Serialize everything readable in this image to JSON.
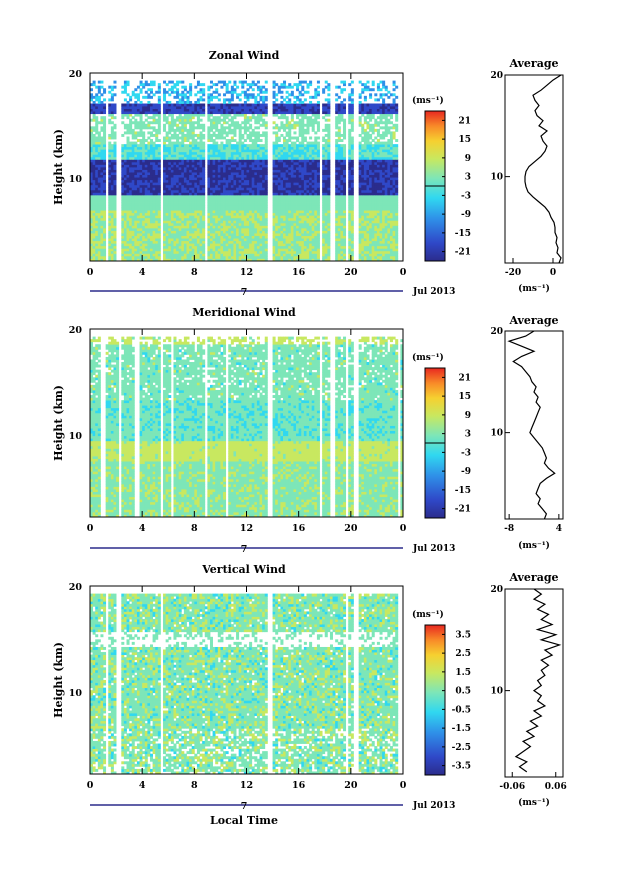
{
  "figure": {
    "time_axis_label": "Local Time",
    "date_label": "Jul 2013",
    "day_label": "7",
    "average_title": "Average",
    "colorbar_unit": "(ms⁻¹)",
    "profile_unit": "(ms⁻¹)"
  },
  "chart_data": [
    {
      "type": "heatmap",
      "name": "zonal",
      "title": "Zonal Wind",
      "ylabel": "Height (km)",
      "xlabel": "",
      "x_ticks": [
        "0",
        "4",
        "8",
        "12",
        "16",
        "20",
        "0"
      ],
      "y_ticks": [
        "20",
        "10"
      ],
      "xlim": [
        0,
        24
      ],
      "ylim": [
        1.5,
        20
      ],
      "colorbar": {
        "ticks": [
          "21",
          "15",
          "9",
          "3",
          "-3",
          "-9",
          "-15",
          "-21"
        ],
        "range": [
          -24,
          24
        ]
      },
      "gaps_hours": [
        1.3,
        2.2,
        5.5,
        8.9,
        13.8,
        17.7,
        18.6,
        19.7,
        20.4,
        23.8
      ],
      "profile": {
        "title": "Average",
        "x_ticks": [
          "-20",
          "0"
        ],
        "y_ticks": [
          "20",
          "10"
        ],
        "xlim": [
          -24,
          5
        ],
        "heights": [
          1.5,
          2,
          2.5,
          3,
          3.5,
          4,
          4.5,
          5,
          5.5,
          6,
          6.5,
          7,
          7.5,
          8,
          8.5,
          9,
          9.5,
          10,
          10.5,
          11,
          11.5,
          12,
          12.5,
          13,
          13.5,
          14,
          14.5,
          15,
          15.5,
          16,
          16.5,
          17,
          17.5,
          18,
          18.5,
          19,
          19.5,
          20
        ],
        "values": [
          3,
          4,
          2,
          2.5,
          1.5,
          2,
          1,
          1,
          0.5,
          -1,
          -2,
          -4,
          -7,
          -10,
          -12.5,
          -13.5,
          -14,
          -14,
          -13.5,
          -12,
          -9,
          -6,
          -4,
          -3,
          -5,
          -6,
          -3,
          -7,
          -5,
          -8,
          -9,
          -7,
          -9,
          -10,
          -6,
          -3,
          0,
          4
        ]
      }
    },
    {
      "type": "heatmap",
      "name": "meridional",
      "title": "Meridional Wind",
      "ylabel": "Height (km)",
      "xlabel": "",
      "x_ticks": [
        "0",
        "4",
        "8",
        "12",
        "16",
        "20",
        "0"
      ],
      "y_ticks": [
        "20",
        "10"
      ],
      "xlim": [
        0,
        24
      ],
      "ylim": [
        1.5,
        20
      ],
      "colorbar": {
        "ticks": [
          "21",
          "15",
          "9",
          "3",
          "-3",
          "-9",
          "-15",
          "-21"
        ],
        "range": [
          -24,
          24
        ]
      },
      "gaps_hours": [
        1.0,
        2.3,
        3.6,
        5.5,
        6.3,
        8.9,
        10.5,
        13.8,
        17.7,
        18.6,
        19.7,
        20.4,
        23.7
      ],
      "profile": {
        "title": "Average",
        "x_ticks": [
          "-8",
          "4"
        ],
        "y_ticks": [
          "20",
          "10"
        ],
        "xlim": [
          -9,
          5
        ],
        "heights": [
          1.5,
          2,
          2.5,
          3,
          3.5,
          4,
          4.5,
          5,
          5.5,
          6,
          6.5,
          7,
          7.5,
          8,
          8.5,
          9,
          9.5,
          10,
          10.5,
          11,
          11.5,
          12,
          12.5,
          13,
          13.5,
          14,
          14.5,
          15,
          15.5,
          16,
          16.5,
          17,
          17.5,
          18,
          18.5,
          19,
          19.5,
          20
        ],
        "values": [
          0.5,
          1,
          0,
          -1,
          -0.5,
          -1.5,
          -1,
          -0.5,
          1,
          3,
          1.5,
          0.5,
          1,
          0.5,
          0,
          -1,
          -2,
          -3,
          -2.5,
          -2,
          -1.5,
          -1,
          -0.5,
          -1.5,
          -1,
          -2,
          -1.5,
          -2.5,
          -3,
          -4,
          -5,
          -7,
          -5,
          -2,
          -5,
          -8,
          -4,
          -2
        ]
      }
    },
    {
      "type": "heatmap",
      "name": "vertical",
      "title": "Vertical Wind",
      "ylabel": "Height (km)",
      "xlabel": "Local Time",
      "x_ticks": [
        "0",
        "4",
        "8",
        "12",
        "16",
        "20",
        "0"
      ],
      "y_ticks": [
        "20",
        "10"
      ],
      "xlim": [
        0,
        24
      ],
      "ylim": [
        1.5,
        20
      ],
      "colorbar": {
        "ticks": [
          "3.5",
          "2.5",
          "1.5",
          "0.5",
          "-0.5",
          "-1.5",
          "-2.5",
          "-3.5"
        ],
        "range": [
          -4,
          4
        ]
      },
      "gaps_hours": [
        1.3,
        2.2,
        5.5,
        13.8,
        19.7,
        20.4,
        23.8
      ],
      "profile": {
        "title": "Average",
        "x_ticks": [
          "-0.06",
          "0.06"
        ],
        "y_ticks": [
          "20",
          "10"
        ],
        "xlim": [
          -0.08,
          0.08
        ],
        "heights": [
          2,
          2.5,
          3,
          3.5,
          4,
          4.5,
          5,
          5.5,
          6,
          6.5,
          7,
          7.5,
          8,
          8.5,
          9,
          9.5,
          10,
          10.5,
          11,
          11.5,
          12,
          12.5,
          13,
          13.5,
          14,
          14.5,
          15,
          15.5,
          16,
          16.5,
          17,
          17.5,
          18,
          18.5,
          19,
          19.5,
          20
        ],
        "values": [
          -0.02,
          -0.04,
          -0.02,
          -0.05,
          -0.03,
          -0.01,
          -0.03,
          0.0,
          -0.02,
          0.01,
          -0.01,
          0.02,
          0.0,
          0.03,
          0.01,
          0.02,
          0.0,
          0.02,
          0.01,
          0.03,
          0.02,
          0.04,
          0.02,
          0.05,
          0.03,
          0.07,
          0.02,
          0.06,
          0.01,
          0.05,
          0.02,
          0.04,
          0.01,
          0.03,
          0.0,
          0.02,
          0.0
        ]
      }
    }
  ]
}
